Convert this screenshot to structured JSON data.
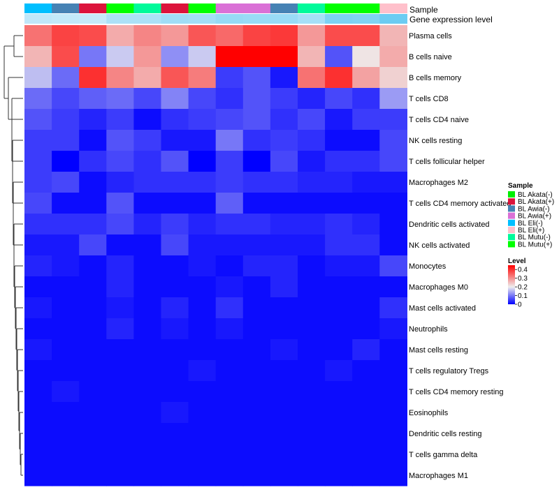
{
  "chart_data": {
    "type": "heatmap",
    "title": "",
    "annotation_labels": {
      "sample": "Sample",
      "gene": "Gene expression level"
    },
    "sample_annotation": [
      "BL Eli(-)",
      "BL Awia(-)",
      "BL Akata(+)",
      "BL Mutu(+)",
      "BL Mutu(-)",
      "BL Akata(+)",
      "BL Mutu(+)",
      "BL Awia(+)",
      "BL Awia(+)",
      "BL Awia(-)",
      "BL Mutu(-)",
      "BL Mutu(+)",
      "BL Mutu(+)",
      "BL Eli(+)"
    ],
    "gene_level_annotation": [
      0.12,
      0.11,
      0.1,
      0.18,
      0.18,
      0.22,
      0.21,
      0.25,
      0.24,
      0.24,
      0.2,
      0.33,
      0.32,
      0.38
    ],
    "rows": [
      "Plasma cells",
      "B cells naive",
      "B cells memory",
      "T cells CD8",
      "T cells CD4 naive",
      "NK cells resting",
      "T cells follicular helper",
      "Macrophages M2",
      "T cells CD4 memory activated",
      "Dendritic cells activated",
      "NK cells activated",
      "Monocytes",
      "Macrophages M0",
      "Mast cells activated",
      "Neutrophils",
      "Mast cells resting",
      "T cells regulatory  Tregs",
      "T cells CD4 memory resting",
      "Eosinophils",
      "Dendritic cells resting",
      "T cells gamma delta",
      "Macrophages M1"
    ],
    "values": [
      [
        0.33,
        0.38,
        0.37,
        0.27,
        0.31,
        0.29,
        0.36,
        0.34,
        0.38,
        0.39,
        0.29,
        0.37,
        0.37,
        0.26
      ],
      [
        0.26,
        0.37,
        0.1,
        0.17,
        0.29,
        0.12,
        0.17,
        0.45,
        0.45,
        0.45,
        0.26,
        0.07,
        0.21,
        0.27
      ],
      [
        0.16,
        0.09,
        0.4,
        0.31,
        0.27,
        0.36,
        0.32,
        0.05,
        0.07,
        0.02,
        0.33,
        0.4,
        0.28,
        0.23
      ],
      [
        0.09,
        0.06,
        0.08,
        0.09,
        0.06,
        0.11,
        0.06,
        0.04,
        0.07,
        0.05,
        0.03,
        0.06,
        0.04,
        0.13
      ],
      [
        0.07,
        0.05,
        0.03,
        0.05,
        0.01,
        0.04,
        0.05,
        0.06,
        0.07,
        0.04,
        0.06,
        0.02,
        0.05,
        0.05
      ],
      [
        0.05,
        0.05,
        0.01,
        0.07,
        0.05,
        0.02,
        0.02,
        0.1,
        0.04,
        0.05,
        0.04,
        0.01,
        0.01,
        0.06
      ],
      [
        0.05,
        0.0,
        0.04,
        0.06,
        0.04,
        0.07,
        0.0,
        0.05,
        0.0,
        0.06,
        0.02,
        0.04,
        0.04,
        0.06
      ],
      [
        0.05,
        0.06,
        0.01,
        0.03,
        0.04,
        0.04,
        0.04,
        0.05,
        0.04,
        0.04,
        0.03,
        0.03,
        0.02,
        0.02
      ],
      [
        0.06,
        0.01,
        0.01,
        0.07,
        0.01,
        0.01,
        0.01,
        0.08,
        0.01,
        0.01,
        0.01,
        0.01,
        0.01,
        0.01
      ],
      [
        0.04,
        0.04,
        0.04,
        0.06,
        0.03,
        0.05,
        0.03,
        0.04,
        0.04,
        0.03,
        0.03,
        0.04,
        0.03,
        0.01
      ],
      [
        0.02,
        0.02,
        0.06,
        0.01,
        0.01,
        0.06,
        0.02,
        0.02,
        0.02,
        0.02,
        0.02,
        0.04,
        0.04,
        0.01
      ],
      [
        0.03,
        0.02,
        0.01,
        0.03,
        0.01,
        0.01,
        0.02,
        0.01,
        0.03,
        0.03,
        0.01,
        0.02,
        0.02,
        0.06
      ],
      [
        0.01,
        0.01,
        0.01,
        0.03,
        0.01,
        0.01,
        0.01,
        0.02,
        0.01,
        0.03,
        0.01,
        0.01,
        0.01,
        0.01
      ],
      [
        0.02,
        0.01,
        0.01,
        0.02,
        0.01,
        0.03,
        0.01,
        0.04,
        0.01,
        0.01,
        0.01,
        0.01,
        0.01,
        0.04
      ],
      [
        0.01,
        0.01,
        0.01,
        0.03,
        0.01,
        0.02,
        0.01,
        0.02,
        0.01,
        0.01,
        0.01,
        0.01,
        0.01,
        0.02
      ],
      [
        0.02,
        0.01,
        0.01,
        0.01,
        0.01,
        0.01,
        0.01,
        0.01,
        0.01,
        0.02,
        0.01,
        0.01,
        0.03,
        0.01
      ],
      [
        0.01,
        0.01,
        0.01,
        0.01,
        0.01,
        0.01,
        0.02,
        0.01,
        0.01,
        0.01,
        0.01,
        0.02,
        0.01,
        0.01
      ],
      [
        0.01,
        0.02,
        0.01,
        0.01,
        0.01,
        0.01,
        0.01,
        0.01,
        0.01,
        0.01,
        0.01,
        0.01,
        0.01,
        0.01
      ],
      [
        0.01,
        0.01,
        0.01,
        0.01,
        0.01,
        0.02,
        0.01,
        0.01,
        0.01,
        0.01,
        0.01,
        0.01,
        0.01,
        0.01
      ],
      [
        0.01,
        0.01,
        0.01,
        0.01,
        0.01,
        0.01,
        0.01,
        0.01,
        0.01,
        0.01,
        0.01,
        0.01,
        0.01,
        0.01
      ],
      [
        0.01,
        0.01,
        0.01,
        0.01,
        0.01,
        0.01,
        0.01,
        0.01,
        0.01,
        0.01,
        0.01,
        0.01,
        0.01,
        0.01
      ],
      [
        0.01,
        0.01,
        0.01,
        0.01,
        0.01,
        0.01,
        0.01,
        0.01,
        0.01,
        0.01,
        0.01,
        0.01,
        0.01,
        0.01
      ]
    ],
    "color_scale": {
      "min": 0,
      "mid": 0.2,
      "max": 0.45,
      "colors": {
        "low": "#0000ff",
        "mid": "#eeeeee",
        "high": "#ff0000"
      }
    },
    "legend_sample": {
      "title": "Sample",
      "entries": [
        {
          "label": "BL Akata(-)",
          "color": "#00ee00"
        },
        {
          "label": "BL Akata(+)",
          "color": "#dc143c"
        },
        {
          "label": "BL Awia(-)",
          "color": "#4682b4"
        },
        {
          "label": "BL Awia(+)",
          "color": "#da70d6"
        },
        {
          "label": "BL Eli(-)",
          "color": "#00bfff"
        },
        {
          "label": "BL Eli(+)",
          "color": "#ffc0cb"
        },
        {
          "label": "BL Mutu(-)",
          "color": "#00fa9a"
        },
        {
          "label": "BL Mutu(+)",
          "color": "#00ff00"
        }
      ]
    },
    "legend_level": {
      "title": "Level",
      "ticks": [
        {
          "label": "0.4",
          "value": 0.4
        },
        {
          "label": "0.3",
          "value": 0.3
        },
        {
          "label": "0.2",
          "value": 0.2
        },
        {
          "label": "0.1",
          "value": 0.1
        },
        {
          "label": "0",
          "value": 0
        }
      ]
    },
    "gene_level_colors": {
      "low": "#e6f4fc",
      "high": "#56c5f0",
      "min": 0.0,
      "max": 0.45
    }
  }
}
